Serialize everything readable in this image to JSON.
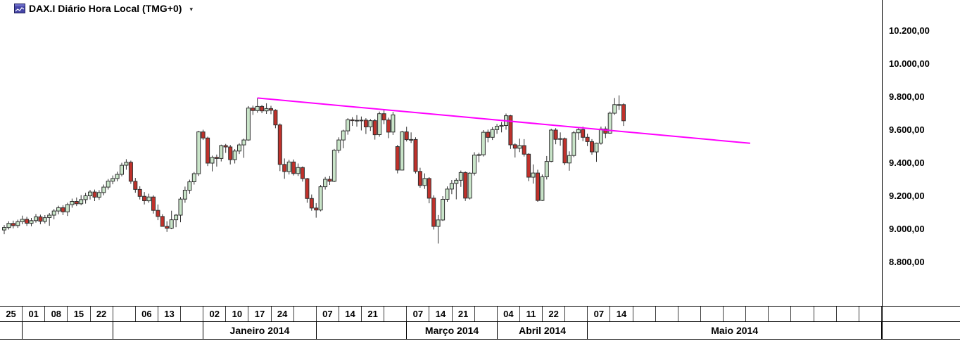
{
  "window": {
    "title": "DAX.I Diário Hora Local (TMG+0)",
    "dropdown_glyph": "▾"
  },
  "colors": {
    "background": "#ffffff",
    "up_fill": "#c9e5c9",
    "up_border": "#2f2f2f",
    "down_fill": "#c0312b",
    "down_border": "#2f2f2f",
    "wick": "#2f2f2f",
    "trendline": "#ff00ff",
    "axis_line": "#000000",
    "axis_text": "#000000",
    "icon_bg": "#4646a8"
  },
  "chart_data": {
    "type": "candlestick",
    "title": "DAX.I Diário Hora Local (TMG+0)",
    "instrument": "DAX.I",
    "period": "Diário",
    "timezone_note": "Hora Local (TMG+0)",
    "y_axis": {
      "side": "right",
      "items": [
        {
          "label": "10.200,00",
          "price": 10200
        },
        {
          "label": "10.000,00",
          "price": 10000
        },
        {
          "label": "9.800,00",
          "price": 9800
        },
        {
          "label": "9.600,00",
          "price": 9600
        },
        {
          "label": "9.400,00",
          "price": 9400
        },
        {
          "label": "9.200,00",
          "price": 9200
        },
        {
          "label": "9.000,00",
          "price": 9000
        },
        {
          "label": "8.800,00",
          "price": 8800
        }
      ]
    },
    "x_axis": {
      "cells_total": 39,
      "week_cells": [
        "25",
        "01",
        "08",
        "15",
        "22",
        "",
        "06",
        "13",
        "",
        "02",
        "10",
        "17",
        "24",
        "",
        "07",
        "14",
        "21",
        "",
        "07",
        "14",
        "21",
        "",
        "04",
        "11",
        "22",
        "",
        "07",
        "14",
        "",
        "",
        "",
        "",
        "",
        "",
        "",
        "",
        "",
        "",
        ""
      ],
      "months": [
        {
          "label": "",
          "start": 0,
          "end": 0
        },
        {
          "label": "",
          "start": 1,
          "end": 4
        },
        {
          "label": "",
          "start": 5,
          "end": 8
        },
        {
          "label": "Janeiro 2014",
          "start": 9,
          "end": 13
        },
        {
          "label": "",
          "start": 14,
          "end": 17
        },
        {
          "label": "Março 2014",
          "start": 18,
          "end": 21
        },
        {
          "label": "Abril 2014",
          "start": 22,
          "end": 25
        },
        {
          "label": "Maio 2014",
          "start": 26,
          "end": 38
        }
      ]
    },
    "trendline": {
      "color": "#ff00ff",
      "points": [
        {
          "index": 56,
          "price": 9794
        },
        {
          "index": 165,
          "price": 9520
        }
      ]
    },
    "candles": {
      "columns": [
        "date",
        "open",
        "high",
        "low",
        "close"
      ],
      "rows": [
        [
          "2013-10-24",
          8995,
          9025,
          8970,
          9010
        ],
        [
          "2013-10-25",
          9010,
          9048,
          8998,
          9035
        ],
        [
          "2013-10-28",
          9035,
          9052,
          9005,
          9022
        ],
        [
          "2013-10-29",
          9022,
          9058,
          9008,
          9045
        ],
        [
          "2013-10-30",
          9045,
          9082,
          9030,
          9060
        ],
        [
          "2013-10-31",
          9060,
          9075,
          9020,
          9036
        ],
        [
          "2013-11-01",
          9036,
          9068,
          9018,
          9052
        ],
        [
          "2013-11-04",
          9052,
          9092,
          9040,
          9075
        ],
        [
          "2013-11-05",
          9075,
          9088,
          9030,
          9048
        ],
        [
          "2013-11-06",
          9048,
          9085,
          9035,
          9070
        ],
        [
          "2013-11-07",
          9070,
          9098,
          9021,
          9085
        ],
        [
          "2013-11-08",
          9085,
          9122,
          9060,
          9110
        ],
        [
          "2013-11-11",
          9110,
          9142,
          9090,
          9130
        ],
        [
          "2013-11-12",
          9130,
          9145,
          9085,
          9105
        ],
        [
          "2013-11-13",
          9105,
          9160,
          9080,
          9149
        ],
        [
          "2013-11-14",
          9149,
          9185,
          9130,
          9168
        ],
        [
          "2013-11-15",
          9168,
          9192,
          9140,
          9154
        ],
        [
          "2013-11-18",
          9154,
          9207,
          9145,
          9179
        ],
        [
          "2013-11-19",
          9179,
          9220,
          9155,
          9202
        ],
        [
          "2013-11-20",
          9202,
          9238,
          9180,
          9225
        ],
        [
          "2013-11-21",
          9225,
          9240,
          9170,
          9194
        ],
        [
          "2013-11-22",
          9194,
          9236,
          9178,
          9222
        ],
        [
          "2013-11-25",
          9222,
          9270,
          9205,
          9255
        ],
        [
          "2013-11-26",
          9255,
          9304,
          9240,
          9291
        ],
        [
          "2013-11-27",
          9291,
          9325,
          9272,
          9307
        ],
        [
          "2013-11-28",
          9307,
          9348,
          9290,
          9332
        ],
        [
          "2013-11-29",
          9332,
          9402,
          9320,
          9387
        ],
        [
          "2013-12-02",
          9387,
          9424,
          9360,
          9405
        ],
        [
          "2013-12-03",
          9405,
          9415,
          9275,
          9290
        ],
        [
          "2013-12-04",
          9290,
          9310,
          9221,
          9241
        ],
        [
          "2013-12-05",
          9241,
          9260,
          9180,
          9199
        ],
        [
          "2013-12-06",
          9199,
          9225,
          9150,
          9172
        ],
        [
          "2013-12-09",
          9172,
          9215,
          9160,
          9195
        ],
        [
          "2013-12-10",
          9195,
          9205,
          9095,
          9114
        ],
        [
          "2013-12-11",
          9114,
          9150,
          9055,
          9077
        ],
        [
          "2013-12-12",
          9077,
          9090,
          9016,
          9017
        ],
        [
          "2013-12-13",
          9017,
          9048,
          8984,
          9006
        ],
        [
          "2013-12-16",
          9006,
          9112,
          9000,
          9057
        ],
        [
          "2013-12-17",
          9057,
          9092,
          9012,
          9085
        ],
        [
          "2013-12-18",
          9085,
          9195,
          9042,
          9182
        ],
        [
          "2013-12-19",
          9182,
          9258,
          9160,
          9236
        ],
        [
          "2013-12-20",
          9236,
          9300,
          9214,
          9287
        ],
        [
          "2013-12-23",
          9287,
          9346,
          9270,
          9336
        ],
        [
          "2013-12-27",
          9336,
          9595,
          9322,
          9589
        ],
        [
          "2013-12-30",
          9589,
          9602,
          9540,
          9552
        ],
        [
          "2014-01-02",
          9552,
          9560,
          9382,
          9400
        ],
        [
          "2014-01-03",
          9400,
          9445,
          9350,
          9435
        ],
        [
          "2014-01-06",
          9435,
          9452,
          9379,
          9428
        ],
        [
          "2014-01-07",
          9428,
          9512,
          9410,
          9506
        ],
        [
          "2014-01-08",
          9506,
          9516,
          9462,
          9498
        ],
        [
          "2014-01-09",
          9498,
          9510,
          9392,
          9421
        ],
        [
          "2014-01-10",
          9421,
          9485,
          9398,
          9473
        ],
        [
          "2014-01-13",
          9473,
          9520,
          9455,
          9510
        ],
        [
          "2014-01-14",
          9510,
          9548,
          9432,
          9540
        ],
        [
          "2014-01-15",
          9540,
          9745,
          9535,
          9733
        ],
        [
          "2014-01-16",
          9733,
          9748,
          9692,
          9718
        ],
        [
          "2014-01-17",
          9718,
          9794,
          9705,
          9743
        ],
        [
          "2014-01-20",
          9743,
          9752,
          9702,
          9716
        ],
        [
          "2014-01-21",
          9716,
          9762,
          9698,
          9730
        ],
        [
          "2014-01-22",
          9730,
          9747,
          9696,
          9720
        ],
        [
          "2014-01-23",
          9720,
          9726,
          9611,
          9631
        ],
        [
          "2014-01-24",
          9631,
          9640,
          9352,
          9392
        ],
        [
          "2014-01-27",
          9392,
          9428,
          9305,
          9349
        ],
        [
          "2014-01-28",
          9349,
          9420,
          9331,
          9407
        ],
        [
          "2014-01-29",
          9407,
          9422,
          9325,
          9337
        ],
        [
          "2014-01-30",
          9337,
          9398,
          9322,
          9373
        ],
        [
          "2014-01-31",
          9373,
          9380,
          9288,
          9306
        ],
        [
          "2014-02-03",
          9306,
          9310,
          9160,
          9186
        ],
        [
          "2014-02-04",
          9186,
          9210,
          9112,
          9128
        ],
        [
          "2014-02-05",
          9128,
          9158,
          9070,
          9116
        ],
        [
          "2014-02-06",
          9116,
          9268,
          9108,
          9257
        ],
        [
          "2014-02-07",
          9257,
          9316,
          9240,
          9302
        ],
        [
          "2014-02-10",
          9302,
          9322,
          9268,
          9290
        ],
        [
          "2014-02-11",
          9290,
          9486,
          9285,
          9478
        ],
        [
          "2014-02-12",
          9478,
          9556,
          9461,
          9540
        ],
        [
          "2014-02-13",
          9540,
          9602,
          9490,
          9595
        ],
        [
          "2014-02-14",
          9595,
          9672,
          9572,
          9662
        ],
        [
          "2014-02-17",
          9662,
          9678,
          9625,
          9657
        ],
        [
          "2014-02-18",
          9657,
          9690,
          9621,
          9659
        ],
        [
          "2014-02-19",
          9659,
          9682,
          9598,
          9660
        ],
        [
          "2014-02-20",
          9660,
          9672,
          9576,
          9619
        ],
        [
          "2014-02-21",
          9619,
          9667,
          9595,
          9657
        ],
        [
          "2014-02-24",
          9657,
          9668,
          9542,
          9572
        ],
        [
          "2014-02-25",
          9572,
          9712,
          9560,
          9699
        ],
        [
          "2014-02-26",
          9699,
          9721,
          9636,
          9661
        ],
        [
          "2014-02-27",
          9661,
          9675,
          9551,
          9588
        ],
        [
          "2014-02-28",
          9588,
          9710,
          9570,
          9692
        ],
        [
          "2014-03-03",
          9500,
          9510,
          9338,
          9358
        ],
        [
          "2014-03-04",
          9358,
          9595,
          9356,
          9589
        ],
        [
          "2014-03-05",
          9589,
          9620,
          9531,
          9542
        ],
        [
          "2014-03-06",
          9542,
          9586,
          9522,
          9543
        ],
        [
          "2014-03-07",
          9543,
          9556,
          9337,
          9350
        ],
        [
          "2014-03-10",
          9350,
          9372,
          9251,
          9265
        ],
        [
          "2014-03-11",
          9265,
          9338,
          9244,
          9307
        ],
        [
          "2014-03-12",
          9307,
          9315,
          9157,
          9188
        ],
        [
          "2014-03-13",
          9188,
          9205,
          8998,
          9017
        ],
        [
          "2014-03-14",
          9017,
          9086,
          8913,
          9056
        ],
        [
          "2014-03-17",
          9056,
          9200,
          9050,
          9181
        ],
        [
          "2014-03-18",
          9181,
          9259,
          9166,
          9243
        ],
        [
          "2014-03-19",
          9243,
          9298,
          9212,
          9277
        ],
        [
          "2014-03-20",
          9277,
          9309,
          9181,
          9296
        ],
        [
          "2014-03-21",
          9296,
          9355,
          9256,
          9343
        ],
        [
          "2014-03-24",
          9343,
          9350,
          9171,
          9188
        ],
        [
          "2014-03-25",
          9188,
          9345,
          9180,
          9339
        ],
        [
          "2014-03-26",
          9339,
          9466,
          9325,
          9449
        ],
        [
          "2014-03-27",
          9449,
          9463,
          9405,
          9451
        ],
        [
          "2014-03-28",
          9451,
          9600,
          9440,
          9587
        ],
        [
          "2014-03-31",
          9587,
          9603,
          9526,
          9556
        ],
        [
          "2014-04-01",
          9556,
          9618,
          9540,
          9603
        ],
        [
          "2014-04-02",
          9603,
          9637,
          9577,
          9623
        ],
        [
          "2014-04-03",
          9623,
          9649,
          9586,
          9628
        ],
        [
          "2014-04-04",
          9628,
          9700,
          9602,
          9687
        ],
        [
          "2014-04-07",
          9687,
          9692,
          9486,
          9511
        ],
        [
          "2014-04-08",
          9511,
          9520,
          9434,
          9490
        ],
        [
          "2014-04-09",
          9490,
          9548,
          9467,
          9506
        ],
        [
          "2014-04-10",
          9506,
          9545,
          9440,
          9454
        ],
        [
          "2014-04-11",
          9454,
          9460,
          9291,
          9315
        ],
        [
          "2014-04-14",
          9315,
          9392,
          9276,
          9340
        ],
        [
          "2014-04-15",
          9340,
          9360,
          9166,
          9174
        ],
        [
          "2014-04-16",
          9174,
          9331,
          9170,
          9317
        ],
        [
          "2014-04-17",
          9317,
          9443,
          9301,
          9410
        ],
        [
          "2014-04-22",
          9410,
          9608,
          9405,
          9600
        ],
        [
          "2014-04-23",
          9600,
          9612,
          9514,
          9544
        ],
        [
          "2014-04-24",
          9544,
          9586,
          9505,
          9548
        ],
        [
          "2014-04-25",
          9548,
          9555,
          9388,
          9401
        ],
        [
          "2014-04-28",
          9401,
          9471,
          9354,
          9446
        ],
        [
          "2014-04-29",
          9446,
          9595,
          9436,
          9584
        ],
        [
          "2014-04-30",
          9584,
          9612,
          9541,
          9603
        ],
        [
          "2014-05-02",
          9603,
          9621,
          9533,
          9556
        ],
        [
          "2014-05-05",
          9556,
          9578,
          9503,
          9530
        ],
        [
          "2014-05-06",
          9530,
          9545,
          9451,
          9468
        ],
        [
          "2014-05-07",
          9468,
          9524,
          9408,
          9521
        ],
        [
          "2014-05-08",
          9521,
          9621,
          9512,
          9607
        ],
        [
          "2014-05-09",
          9607,
          9622,
          9551,
          9581
        ],
        [
          "2014-05-12",
          9581,
          9712,
          9578,
          9702
        ],
        [
          "2014-05-13",
          9702,
          9794,
          9692,
          9754
        ],
        [
          "2014-05-14",
          9754,
          9810,
          9722,
          9754
        ],
        [
          "2014-05-15",
          9754,
          9762,
          9625,
          9656
        ]
      ]
    }
  }
}
